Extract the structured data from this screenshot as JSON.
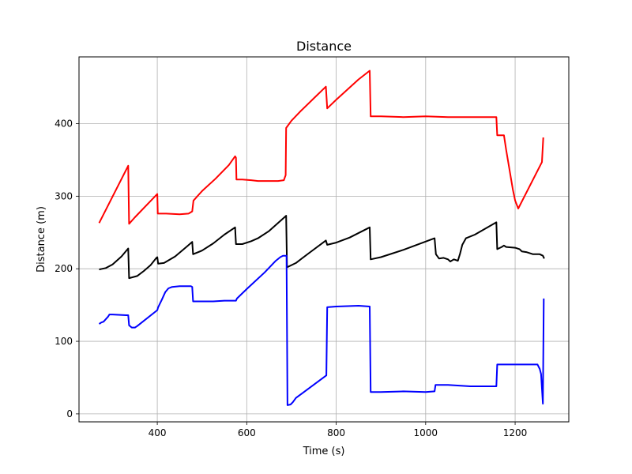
{
  "chart_data": {
    "type": "line",
    "title": "Distance",
    "xlabel": "Time (s)",
    "ylabel": "Distance (m)",
    "xlim": [
      225,
      1320
    ],
    "ylim": [
      -11,
      492
    ],
    "xticks": [
      400,
      600,
      800,
      1000,
      1200
    ],
    "yticks": [
      0,
      100,
      200,
      300,
      400
    ],
    "grid": true,
    "series": [
      {
        "color": "#ff0000",
        "points": [
          [
            270,
            263
          ],
          [
            335,
            342
          ],
          [
            337,
            262
          ],
          [
            350,
            271
          ],
          [
            400,
            303
          ],
          [
            401,
            276
          ],
          [
            420,
            276
          ],
          [
            450,
            275
          ],
          [
            470,
            276
          ],
          [
            478,
            279
          ],
          [
            481,
            294
          ],
          [
            500,
            307
          ],
          [
            530,
            324
          ],
          [
            560,
            343
          ],
          [
            574,
            355
          ],
          [
            576,
            353
          ],
          [
            577,
            323
          ],
          [
            590,
            323
          ],
          [
            610,
            322
          ],
          [
            625,
            321
          ],
          [
            645,
            321
          ],
          [
            670,
            321
          ],
          [
            683,
            322
          ],
          [
            687,
            329
          ],
          [
            688,
            394
          ],
          [
            700,
            404
          ],
          [
            720,
            417
          ],
          [
            750,
            435
          ],
          [
            777,
            451
          ],
          [
            780,
            421
          ],
          [
            800,
            433
          ],
          [
            850,
            461
          ],
          [
            875,
            473
          ],
          [
            877,
            410
          ],
          [
            900,
            410
          ],
          [
            950,
            409
          ],
          [
            1000,
            410
          ],
          [
            1050,
            409
          ],
          [
            1100,
            409
          ],
          [
            1158,
            409
          ],
          [
            1160,
            384
          ],
          [
            1175,
            384
          ],
          [
            1180,
            364
          ],
          [
            1195,
            309
          ],
          [
            1200,
            294
          ],
          [
            1207,
            283
          ],
          [
            1260,
            347
          ],
          [
            1263,
            381
          ]
        ]
      },
      {
        "color": "#000000",
        "points": [
          [
            270,
            199
          ],
          [
            285,
            201
          ],
          [
            300,
            206
          ],
          [
            320,
            217
          ],
          [
            335,
            228
          ],
          [
            337,
            187
          ],
          [
            355,
            190
          ],
          [
            370,
            197
          ],
          [
            385,
            205
          ],
          [
            398,
            215
          ],
          [
            400,
            216
          ],
          [
            402,
            207
          ],
          [
            415,
            208
          ],
          [
            440,
            217
          ],
          [
            465,
            230
          ],
          [
            478,
            237
          ],
          [
            480,
            220
          ],
          [
            500,
            225
          ],
          [
            525,
            235
          ],
          [
            550,
            247
          ],
          [
            574,
            257
          ],
          [
            576,
            234
          ],
          [
            590,
            234
          ],
          [
            610,
            238
          ],
          [
            625,
            242
          ],
          [
            650,
            252
          ],
          [
            688,
            273
          ],
          [
            690,
            202
          ],
          [
            710,
            208
          ],
          [
            740,
            222
          ],
          [
            777,
            239
          ],
          [
            780,
            233
          ],
          [
            800,
            236
          ],
          [
            830,
            243
          ],
          [
            875,
            257
          ],
          [
            877,
            213
          ],
          [
            900,
            216
          ],
          [
            950,
            226
          ],
          [
            1020,
            242
          ],
          [
            1023,
            220
          ],
          [
            1030,
            214
          ],
          [
            1040,
            215
          ],
          [
            1050,
            213
          ],
          [
            1055,
            210
          ],
          [
            1063,
            213
          ],
          [
            1072,
            211
          ],
          [
            1077,
            221
          ],
          [
            1082,
            233
          ],
          [
            1090,
            242
          ],
          [
            1110,
            247
          ],
          [
            1158,
            264
          ],
          [
            1160,
            227
          ],
          [
            1170,
            230
          ],
          [
            1175,
            232
          ],
          [
            1180,
            230
          ],
          [
            1200,
            229
          ],
          [
            1210,
            227
          ],
          [
            1215,
            224
          ],
          [
            1225,
            223
          ],
          [
            1240,
            220
          ],
          [
            1255,
            220
          ],
          [
            1262,
            218
          ],
          [
            1265,
            214
          ]
        ]
      },
      {
        "color": "#0000ff",
        "points": [
          [
            270,
            124
          ],
          [
            275,
            126
          ],
          [
            280,
            127
          ],
          [
            290,
            134
          ],
          [
            293,
            137
          ],
          [
            300,
            137
          ],
          [
            330,
            136
          ],
          [
            335,
            136
          ],
          [
            337,
            122
          ],
          [
            343,
            119
          ],
          [
            350,
            119
          ],
          [
            355,
            121
          ],
          [
            400,
            143
          ],
          [
            402,
            147
          ],
          [
            410,
            157
          ],
          [
            418,
            168
          ],
          [
            425,
            173
          ],
          [
            433,
            175
          ],
          [
            450,
            176
          ],
          [
            475,
            176
          ],
          [
            478,
            175
          ],
          [
            480,
            155
          ],
          [
            500,
            155
          ],
          [
            525,
            155
          ],
          [
            550,
            156
          ],
          [
            576,
            156
          ],
          [
            578,
            159
          ],
          [
            600,
            172
          ],
          [
            640,
            195
          ],
          [
            665,
            211
          ],
          [
            675,
            216
          ],
          [
            681,
            218
          ],
          [
            689,
            218
          ],
          [
            691,
            12
          ],
          [
            698,
            13
          ],
          [
            703,
            16
          ],
          [
            710,
            22
          ],
          [
            778,
            53
          ],
          [
            780,
            147
          ],
          [
            800,
            148
          ],
          [
            850,
            149
          ],
          [
            875,
            148
          ],
          [
            877,
            30
          ],
          [
            900,
            30
          ],
          [
            950,
            31
          ],
          [
            1000,
            30
          ],
          [
            1020,
            31
          ],
          [
            1022,
            40
          ],
          [
            1050,
            40
          ],
          [
            1100,
            38
          ],
          [
            1158,
            38
          ],
          [
            1160,
            68
          ],
          [
            1200,
            68
          ],
          [
            1250,
            68
          ],
          [
            1255,
            62
          ],
          [
            1258,
            55
          ],
          [
            1260,
            35
          ],
          [
            1262,
            14
          ],
          [
            1264,
            159
          ]
        ]
      }
    ]
  }
}
